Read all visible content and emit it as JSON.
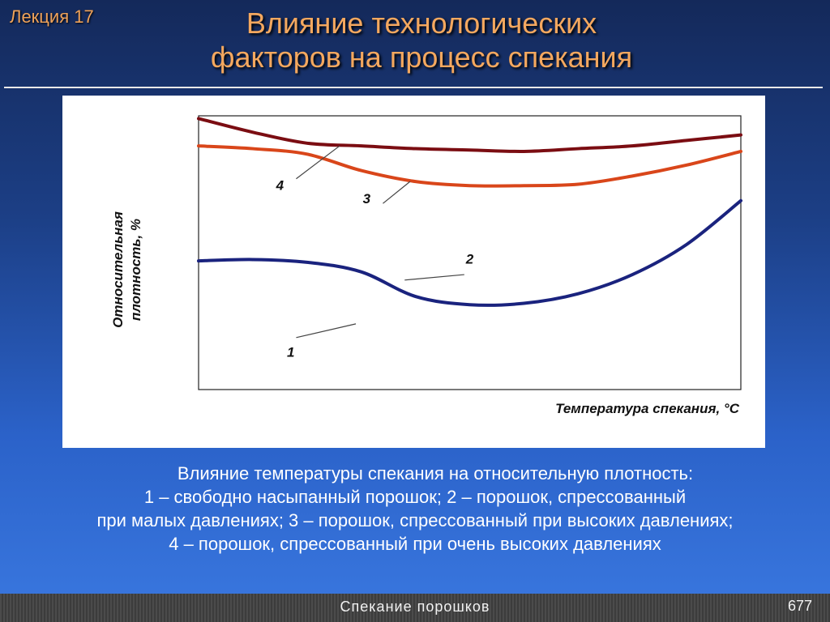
{
  "header": {
    "lecture_label": "Лекция 17",
    "title_line1": "Влияние технологических",
    "title_line2": "факторов на процесс спекания"
  },
  "chart_data": {
    "type": "line",
    "xlabel": "Температура спекания, °С",
    "ylabel_line1": "Относительная",
    "ylabel_line2": "плотность, %",
    "grid": false,
    "x": [
      0,
      10,
      20,
      30,
      40,
      50,
      60,
      70,
      80,
      90,
      100
    ],
    "xlim": [
      0,
      100
    ],
    "ylim": [
      0,
      100
    ],
    "series": [
      {
        "name": "1",
        "values": [
          null,
          null,
          null,
          null,
          null,
          null,
          null,
          null,
          null,
          null,
          null
        ],
        "color": "#1a237e",
        "label_pos": [
          17,
          12
        ],
        "leader": [
          [
            18,
            19
          ],
          [
            29,
            24
          ]
        ]
      },
      {
        "name": "2",
        "values": [
          47,
          47.5,
          46.5,
          43,
          34,
          31,
          31.5,
          35,
          42,
          53,
          69
        ],
        "color": "#1a237e",
        "label_pos": [
          50,
          46
        ],
        "leader": [
          [
            38,
            40
          ],
          [
            49,
            42
          ]
        ]
      },
      {
        "name": "3",
        "values": [
          89,
          88,
          86,
          80,
          76,
          74.5,
          74.5,
          75,
          78,
          82,
          87
        ],
        "color": "#d9461a",
        "label_pos": [
          31,
          68
        ],
        "leader": [
          [
            34,
            68
          ],
          [
            39,
            76
          ]
        ]
      },
      {
        "name": "4",
        "values": [
          99,
          94,
          90,
          89,
          88,
          87.5,
          87,
          88,
          89,
          91,
          93
        ],
        "color": "#7b0d12",
        "label_pos": [
          15,
          73
        ],
        "leader": [
          [
            18,
            77
          ],
          [
            26,
            89
          ]
        ]
      }
    ]
  },
  "caption": {
    "title": "Влияние температуры спекания на относительную плотность:",
    "line1": "1 – свободно насыпанный порошок; 2 –  порошок, спрессованный",
    "line2": "при малых давлениях; 3 – порошок, спрессованный при высоких давлениях;",
    "line3": "4 – порошок, спрессованный при очень высоких давлениях"
  },
  "footer": {
    "title": "Спекание порошков",
    "page": "677"
  }
}
